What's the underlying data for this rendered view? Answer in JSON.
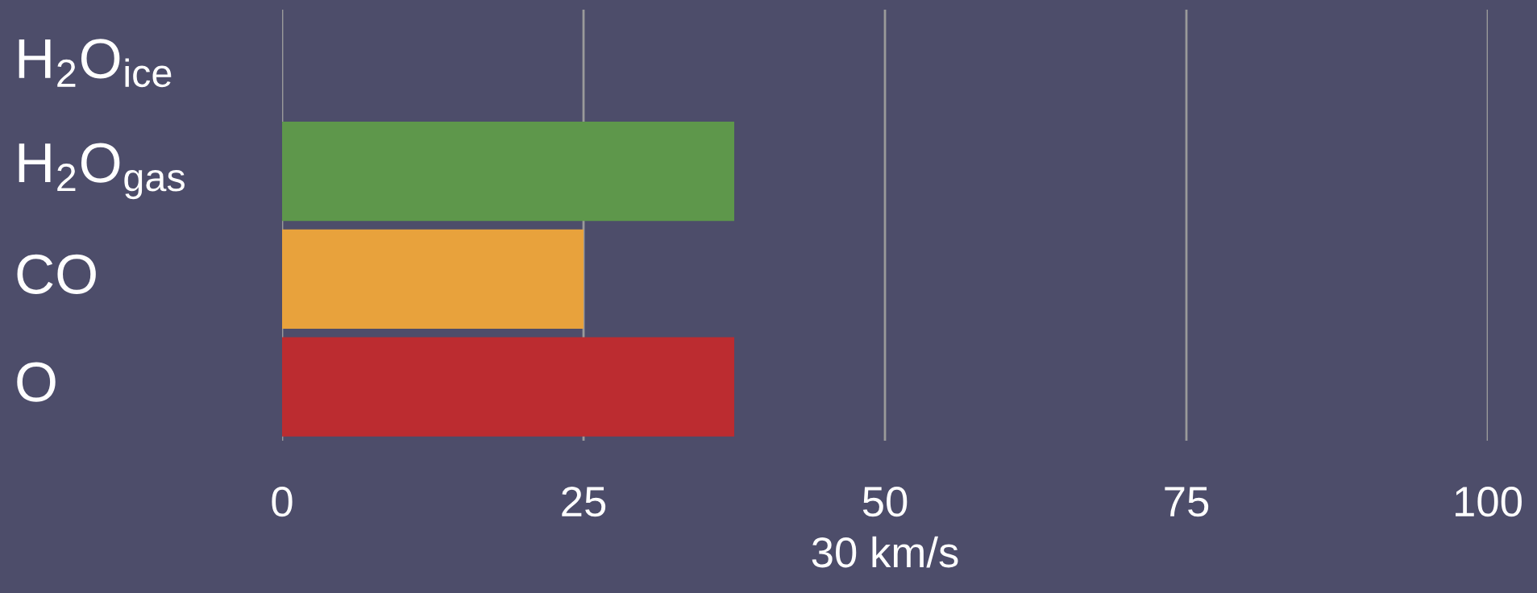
{
  "chart_data": {
    "type": "bar",
    "orientation": "horizontal",
    "categories": [
      "H$_{2}$O$_{ice}$",
      "H$_{2}$O$_{gas}$",
      "CO",
      "O"
    ],
    "values": [
      0,
      37.5,
      25,
      37.5
    ],
    "colors": [
      "#5e974b",
      "#5e974b",
      "#e8a23c",
      "#bc2c30"
    ],
    "xlim": [
      0,
      100
    ],
    "xticks": [
      0,
      25,
      50,
      75,
      100
    ],
    "xlabel": "30 km/s",
    "grid": "x",
    "legend": false
  }
}
